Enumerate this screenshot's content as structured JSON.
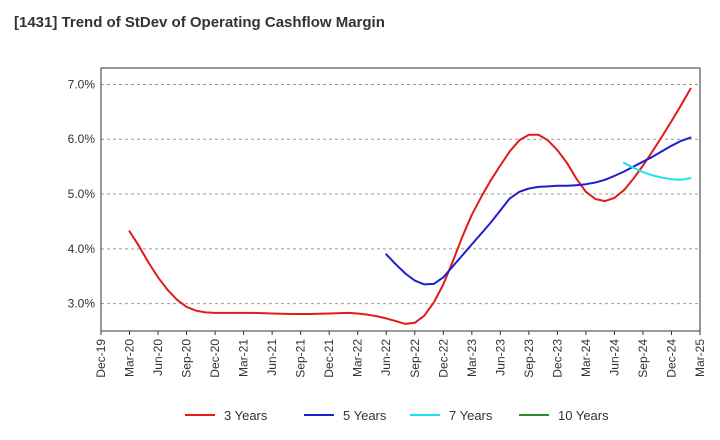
{
  "chart_data": {
    "type": "line",
    "title": "[1431]  Trend of StDev of Operating Cashflow Margin",
    "xlabel": "",
    "ylabel": "",
    "x_categories": [
      "Dec-19",
      "Mar-20",
      "Jun-20",
      "Sep-20",
      "Dec-20",
      "Mar-21",
      "Jun-21",
      "Sep-21",
      "Dec-21",
      "Mar-22",
      "Jun-22",
      "Sep-22",
      "Dec-22",
      "Mar-23",
      "Jun-23",
      "Sep-23",
      "Dec-23",
      "Mar-24",
      "Jun-24",
      "Sep-24",
      "Dec-24",
      "Mar-25"
    ],
    "y_ticks": [
      3.0,
      4.0,
      5.0,
      6.0,
      7.0
    ],
    "y_tick_labels": [
      "3.0%",
      "4.0%",
      "5.0%",
      "6.0%",
      "7.0%"
    ],
    "ylim": [
      2.5,
      7.3
    ],
    "grid": "horizontal dashed",
    "legend_position": "bottom",
    "series": [
      {
        "name": "3 Years",
        "color": "#e31a1c",
        "points": [
          [
            "Mar-20",
            4.32
          ],
          [
            "Apr-20",
            4.05
          ],
          [
            "May-20",
            3.75
          ],
          [
            "Jun-20",
            3.48
          ],
          [
            "Jul-20",
            3.25
          ],
          [
            "Aug-20",
            3.07
          ],
          [
            "Sep-20",
            2.94
          ],
          [
            "Oct-20",
            2.87
          ],
          [
            "Nov-20",
            2.84
          ],
          [
            "Dec-20",
            2.83
          ],
          [
            "Feb-21",
            2.83
          ],
          [
            "Apr-21",
            2.83
          ],
          [
            "Jun-21",
            2.82
          ],
          [
            "Aug-21",
            2.81
          ],
          [
            "Oct-21",
            2.81
          ],
          [
            "Dec-21",
            2.82
          ],
          [
            "Feb-22",
            2.83
          ],
          [
            "Mar-22",
            2.82
          ],
          [
            "Apr-22",
            2.8
          ],
          [
            "May-22",
            2.77
          ],
          [
            "Jun-22",
            2.73
          ],
          [
            "Jul-22",
            2.68
          ],
          [
            "Aug-22",
            2.63
          ],
          [
            "Sep-22",
            2.65
          ],
          [
            "Oct-22",
            2.78
          ],
          [
            "Nov-22",
            3.02
          ],
          [
            "Dec-22",
            3.35
          ],
          [
            "Jan-23",
            3.77
          ],
          [
            "Feb-23",
            4.22
          ],
          [
            "Mar-23",
            4.62
          ],
          [
            "Apr-23",
            4.95
          ],
          [
            "May-23",
            5.25
          ],
          [
            "Jun-23",
            5.52
          ],
          [
            "Jul-23",
            5.78
          ],
          [
            "Aug-23",
            5.98
          ],
          [
            "Sep-23",
            6.08
          ],
          [
            "Oct-23",
            6.08
          ],
          [
            "Nov-23",
            5.98
          ],
          [
            "Dec-23",
            5.8
          ],
          [
            "Jan-24",
            5.57
          ],
          [
            "Feb-24",
            5.28
          ],
          [
            "Mar-24",
            5.04
          ],
          [
            "Apr-24",
            4.91
          ],
          [
            "May-24",
            4.87
          ],
          [
            "Jun-24",
            4.93
          ],
          [
            "Jul-24",
            5.07
          ],
          [
            "Aug-24",
            5.28
          ],
          [
            "Sep-24",
            5.52
          ],
          [
            "Oct-24",
            5.78
          ],
          [
            "Nov-24",
            6.05
          ],
          [
            "Dec-24",
            6.33
          ],
          [
            "Jan-25",
            6.62
          ],
          [
            "Feb-25",
            6.92
          ]
        ]
      },
      {
        "name": "5 Years",
        "color": "#1f1fcc",
        "points": [
          [
            "Jun-22",
            3.9
          ],
          [
            "Jul-22",
            3.72
          ],
          [
            "Aug-22",
            3.55
          ],
          [
            "Sep-22",
            3.42
          ],
          [
            "Oct-22",
            3.35
          ],
          [
            "Nov-22",
            3.36
          ],
          [
            "Dec-22",
            3.48
          ],
          [
            "Jan-23",
            3.68
          ],
          [
            "Feb-23",
            3.88
          ],
          [
            "Mar-23",
            4.08
          ],
          [
            "Apr-23",
            4.28
          ],
          [
            "May-23",
            4.48
          ],
          [
            "Jun-23",
            4.7
          ],
          [
            "Jul-23",
            4.92
          ],
          [
            "Aug-23",
            5.04
          ],
          [
            "Sep-23",
            5.1
          ],
          [
            "Oct-23",
            5.13
          ],
          [
            "Nov-23",
            5.14
          ],
          [
            "Dec-23",
            5.15
          ],
          [
            "Jan-24",
            5.15
          ],
          [
            "Feb-24",
            5.16
          ],
          [
            "Mar-24",
            5.18
          ],
          [
            "Apr-24",
            5.21
          ],
          [
            "May-24",
            5.26
          ],
          [
            "Jun-24",
            5.33
          ],
          [
            "Jul-24",
            5.41
          ],
          [
            "Aug-24",
            5.5
          ],
          [
            "Sep-24",
            5.59
          ],
          [
            "Oct-24",
            5.68
          ],
          [
            "Nov-24",
            5.78
          ],
          [
            "Dec-24",
            5.88
          ],
          [
            "Jan-25",
            5.97
          ],
          [
            "Feb-25",
            6.03
          ]
        ]
      },
      {
        "name": "7 Years",
        "color": "#22e0f0",
        "points": [
          [
            "Jul-24",
            5.57
          ],
          [
            "Aug-24",
            5.48
          ],
          [
            "Sep-24",
            5.4
          ],
          [
            "Oct-24",
            5.34
          ],
          [
            "Nov-24",
            5.3
          ],
          [
            "Dec-24",
            5.27
          ],
          [
            "Jan-25",
            5.26
          ],
          [
            "Feb-25",
            5.29
          ]
        ]
      },
      {
        "name": "10 Years",
        "color": "#2e8b2e",
        "points": []
      }
    ]
  }
}
